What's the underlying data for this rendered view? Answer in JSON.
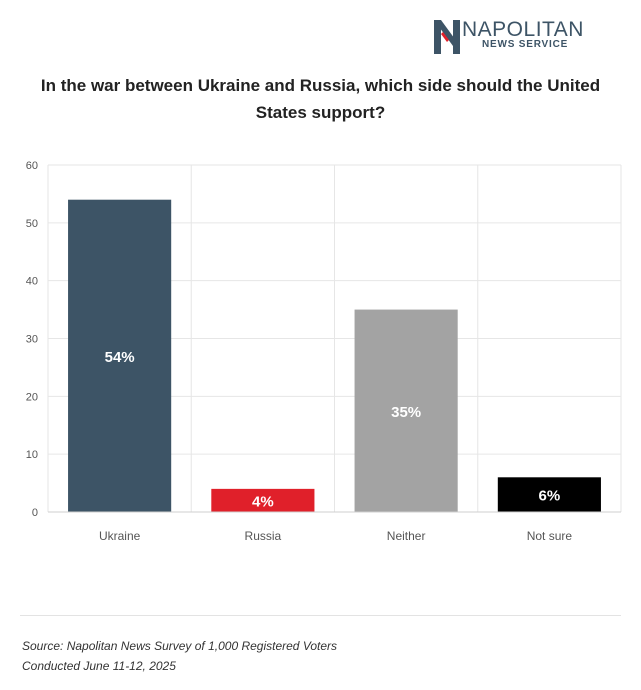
{
  "brand": {
    "name": "NAPOLITAN",
    "subtitle": "NEWS SERVICE"
  },
  "title": "In the war between Ukraine and Russia, which side should the United States support?",
  "footer": {
    "source": "Source: Napolitan News Survey of 1,000 Registered Voters",
    "conducted": "Conducted June 11-12, 2025"
  },
  "chart_data": {
    "type": "bar",
    "categories": [
      "Ukraine",
      "Russia",
      "Neither",
      "Not sure"
    ],
    "values": [
      54,
      4,
      35,
      6
    ],
    "data_labels": [
      "54%",
      "4%",
      "35%",
      "6%"
    ],
    "colors": [
      "#3d5466",
      "#e0202a",
      "#a3a3a3",
      "#000000"
    ],
    "ylim": [
      0,
      60
    ],
    "yticks": [
      0,
      10,
      20,
      30,
      40,
      50,
      60
    ],
    "grid": true
  }
}
